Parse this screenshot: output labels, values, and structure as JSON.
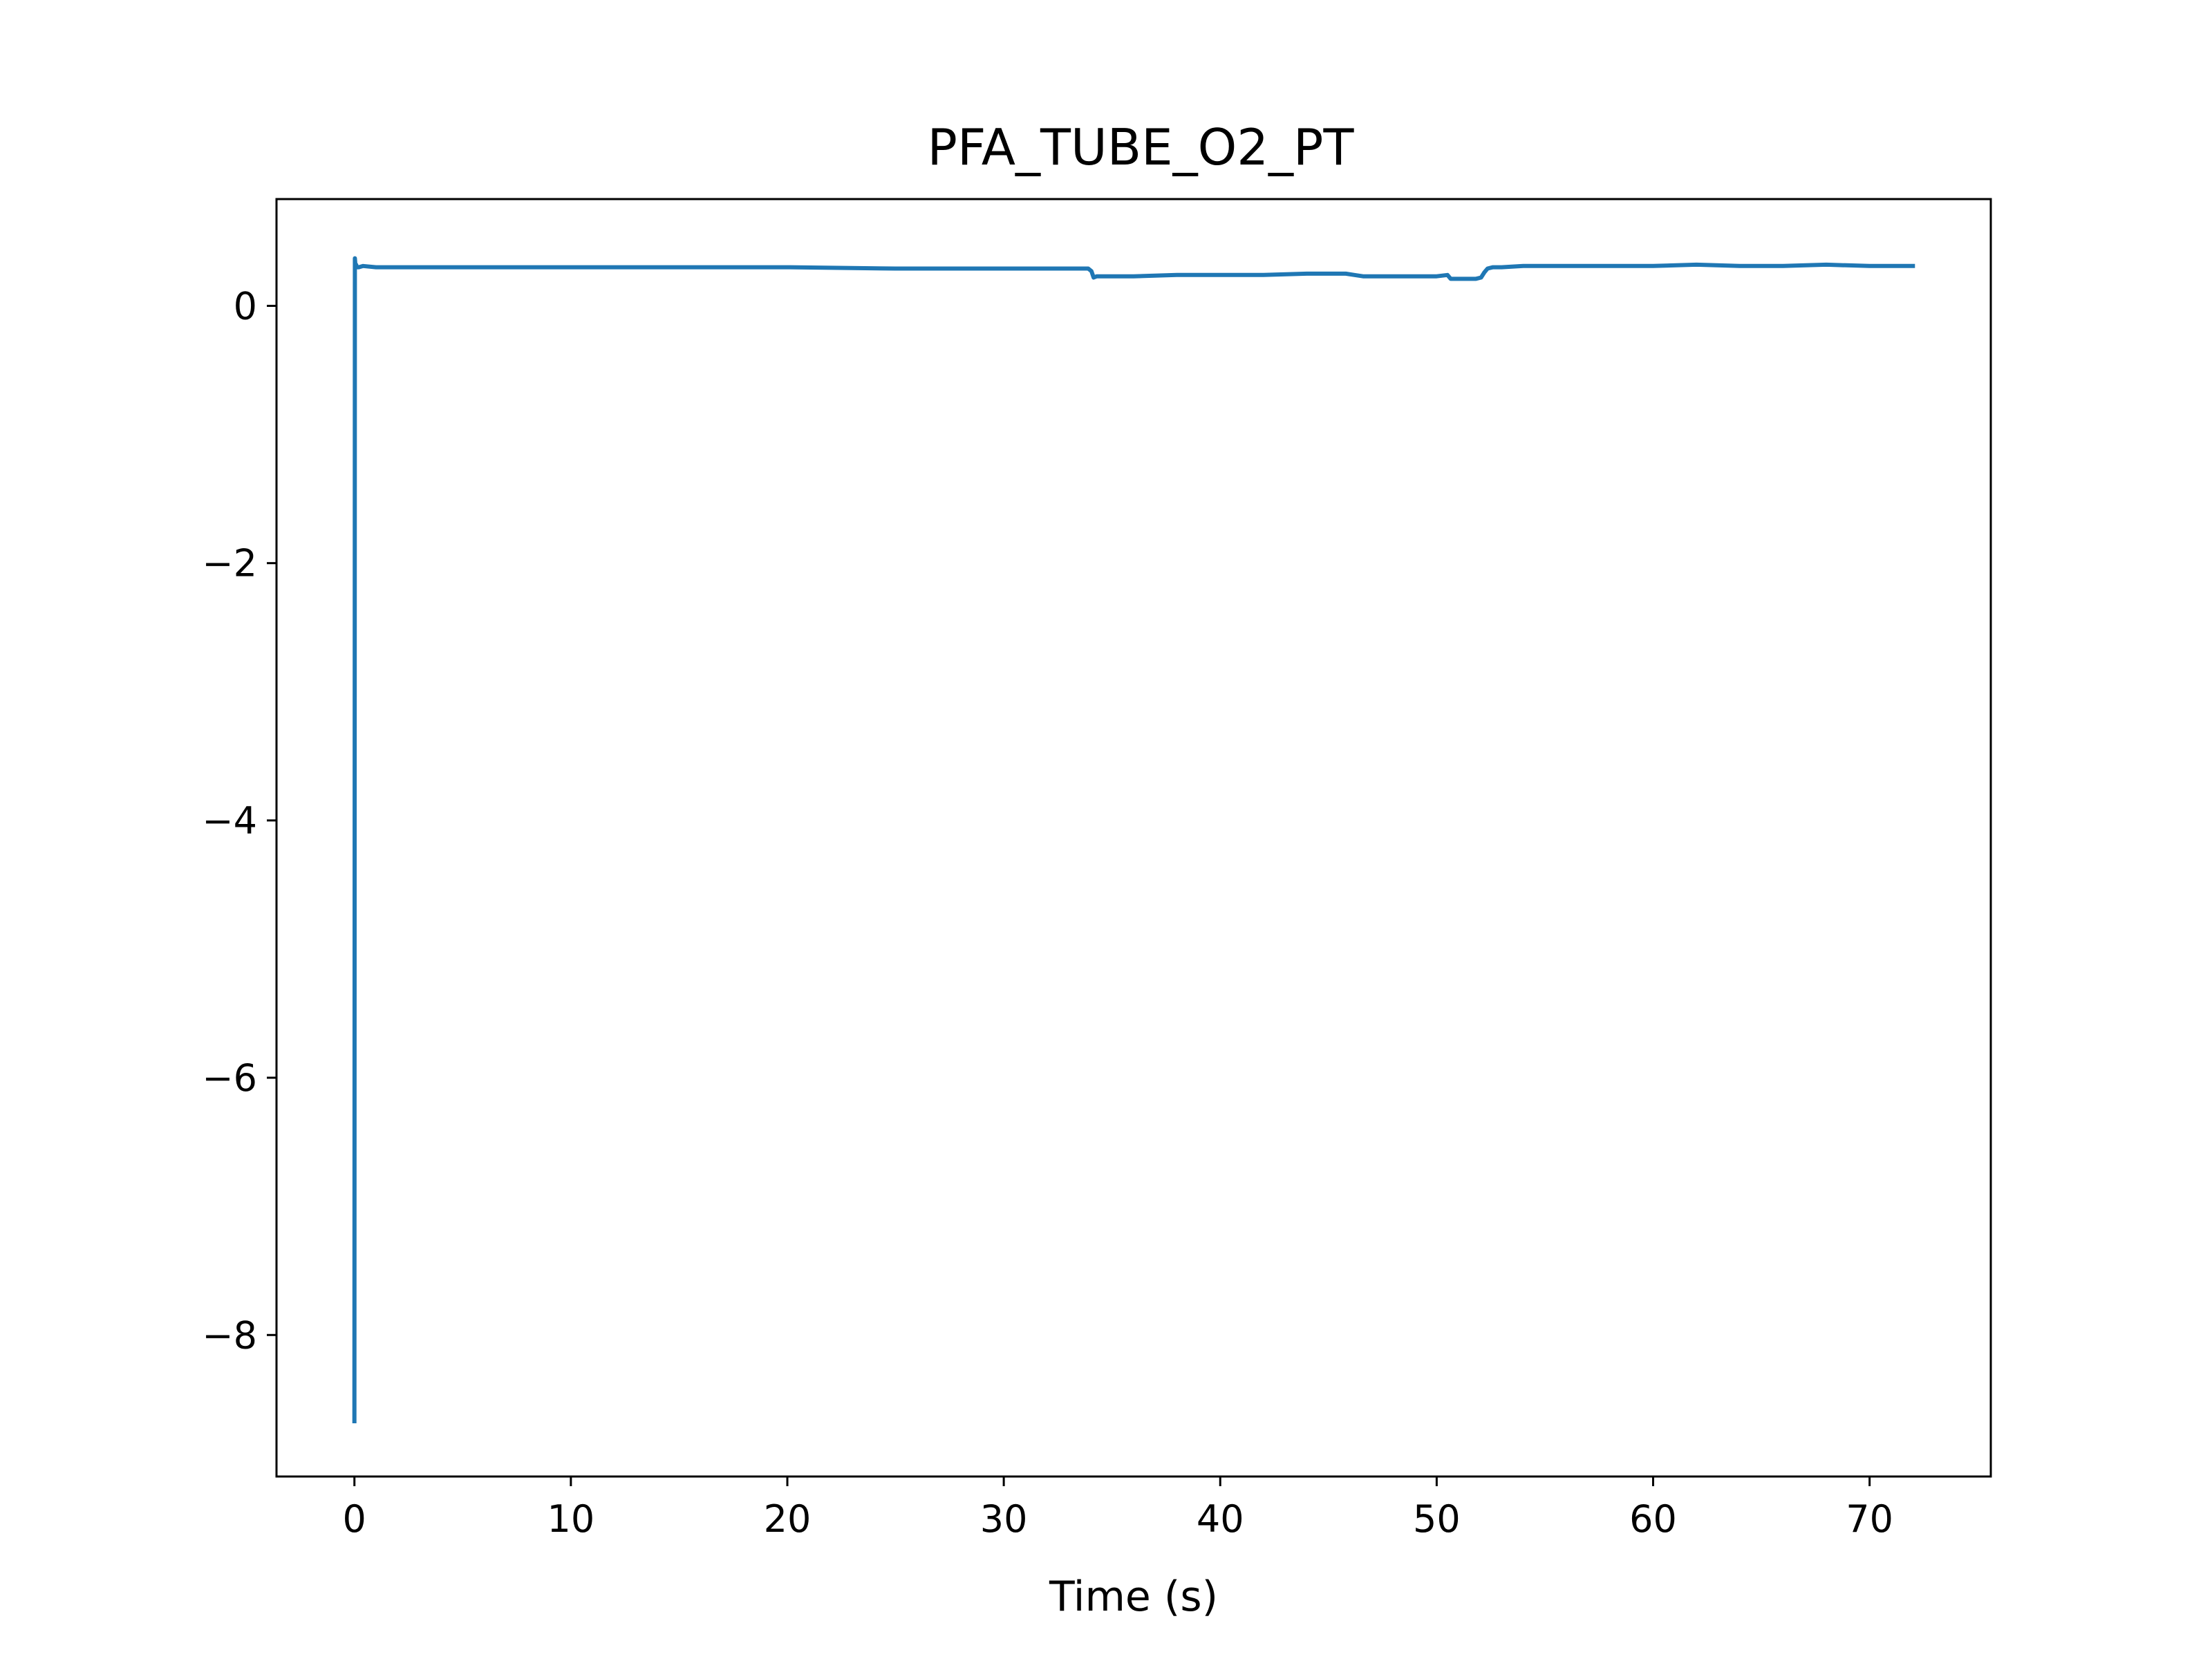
{
  "chart_data": {
    "type": "line",
    "title": "PFA_TUBE_O2_PT",
    "xlabel": "Time (s)",
    "ylabel": "",
    "xlim": [
      -3.6,
      75.6
    ],
    "ylim": [
      -9.1,
      0.83
    ],
    "x_ticks": [
      0,
      10,
      20,
      30,
      40,
      50,
      60,
      70
    ],
    "x_tick_labels": [
      "0",
      "10",
      "20",
      "30",
      "40",
      "50",
      "60",
      "70"
    ],
    "y_ticks": [
      0,
      -2,
      -4,
      -6,
      -8
    ],
    "y_tick_labels": [
      "0",
      "−2",
      "−4",
      "−6",
      "−8"
    ],
    "grid": false,
    "legend": false,
    "series": [
      {
        "color": "#1f77b4",
        "x": [
          0.0,
          0.02,
          0.04,
          0.06,
          0.08,
          0.12,
          0.2,
          0.4,
          1,
          5,
          10,
          15,
          20,
          25,
          30,
          33,
          33.9,
          34.05,
          34.15,
          34.3,
          34.5,
          36,
          38,
          40,
          42,
          44,
          45.8,
          46.2,
          46.6,
          47,
          48,
          50,
          50.5,
          50.65,
          50.8,
          51.2,
          51.8,
          52.05,
          52.2,
          52.35,
          52.6,
          53,
          54,
          56,
          58,
          60,
          62,
          64,
          66,
          68,
          70,
          72
        ],
        "y": [
          -8.67,
          0.37,
          0.33,
          0.3,
          0.32,
          0.3,
          0.3,
          0.31,
          0.3,
          0.3,
          0.3,
          0.3,
          0.3,
          0.29,
          0.29,
          0.29,
          0.29,
          0.27,
          0.22,
          0.23,
          0.23,
          0.23,
          0.24,
          0.24,
          0.24,
          0.25,
          0.25,
          0.24,
          0.23,
          0.23,
          0.23,
          0.23,
          0.24,
          0.21,
          0.21,
          0.21,
          0.21,
          0.22,
          0.26,
          0.29,
          0.3,
          0.3,
          0.31,
          0.31,
          0.31,
          0.31,
          0.32,
          0.31,
          0.31,
          0.32,
          0.31,
          0.31
        ]
      }
    ]
  }
}
